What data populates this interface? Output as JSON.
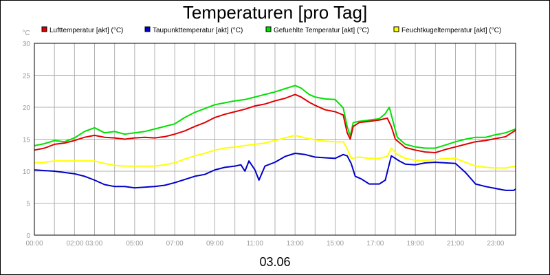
{
  "chart_data": {
    "type": "line",
    "title": "Temperaturen [pro Tag]",
    "unit_label": "°C",
    "xlabel": "03.06",
    "ylim": [
      0,
      30
    ],
    "y_ticks": [
      0,
      5,
      10,
      15,
      20,
      25,
      30
    ],
    "xlim_hours": [
      0,
      24
    ],
    "x_ticks": [
      {
        "hour": 0,
        "label": "00:00"
      },
      {
        "hour": 2.5,
        "label": "02:00 03:00"
      },
      {
        "hour": 5,
        "label": "05:00"
      },
      {
        "hour": 7,
        "label": "07:00"
      },
      {
        "hour": 9,
        "label": "09:00"
      },
      {
        "hour": 11,
        "label": "11:00"
      },
      {
        "hour": 13,
        "label": "13:00"
      },
      {
        "hour": 15,
        "label": "15:00"
      },
      {
        "hour": 17,
        "label": "17:00"
      },
      {
        "hour": 19,
        "label": "19:00"
      },
      {
        "hour": 21,
        "label": "21:00"
      },
      {
        "hour": 23,
        "label": "23:00"
      }
    ],
    "grid": true,
    "legend_position": "top",
    "series": [
      {
        "name": "Lufttemperatur [akt] (°C)",
        "color": "#e00000",
        "points": [
          [
            0,
            13.3
          ],
          [
            0.5,
            13.6
          ],
          [
            1,
            14.2
          ],
          [
            1.5,
            14.4
          ],
          [
            2,
            14.8
          ],
          [
            2.5,
            15.3
          ],
          [
            3,
            15.6
          ],
          [
            3.5,
            15.3
          ],
          [
            4,
            15.2
          ],
          [
            4.5,
            15.0
          ],
          [
            5,
            15.2
          ],
          [
            5.5,
            15.3
          ],
          [
            6,
            15.2
          ],
          [
            6.5,
            15.4
          ],
          [
            7,
            15.8
          ],
          [
            7.5,
            16.3
          ],
          [
            8,
            17.0
          ],
          [
            8.5,
            17.6
          ],
          [
            9,
            18.4
          ],
          [
            9.5,
            18.9
          ],
          [
            10,
            19.3
          ],
          [
            10.5,
            19.7
          ],
          [
            11,
            20.2
          ],
          [
            11.5,
            20.5
          ],
          [
            12,
            21.0
          ],
          [
            12.5,
            21.4
          ],
          [
            13,
            22.0
          ],
          [
            13.3,
            21.6
          ],
          [
            13.7,
            20.8
          ],
          [
            14,
            20.3
          ],
          [
            14.5,
            19.6
          ],
          [
            15,
            19.3
          ],
          [
            15.4,
            18.8
          ],
          [
            15.6,
            16.0
          ],
          [
            15.75,
            15.0
          ],
          [
            15.9,
            17.0
          ],
          [
            16.2,
            17.6
          ],
          [
            16.7,
            17.8
          ],
          [
            17.2,
            18.0
          ],
          [
            17.6,
            18.3
          ],
          [
            17.8,
            17.0
          ],
          [
            18,
            15.0
          ],
          [
            18.5,
            13.7
          ],
          [
            19,
            13.3
          ],
          [
            19.5,
            13.0
          ],
          [
            20,
            12.9
          ],
          [
            20.5,
            13.4
          ],
          [
            21,
            13.8
          ],
          [
            21.5,
            14.2
          ],
          [
            22,
            14.6
          ],
          [
            22.5,
            14.8
          ],
          [
            23,
            15.1
          ],
          [
            23.5,
            15.4
          ],
          [
            24,
            16.4
          ]
        ]
      },
      {
        "name": "Taupunkttemperatur [akt] (°C)",
        "color": "#0000c8",
        "points": [
          [
            0,
            10.2
          ],
          [
            0.5,
            10.1
          ],
          [
            1,
            10.0
          ],
          [
            1.5,
            9.8
          ],
          [
            2,
            9.6
          ],
          [
            2.5,
            9.2
          ],
          [
            3,
            8.6
          ],
          [
            3.5,
            7.9
          ],
          [
            4,
            7.6
          ],
          [
            4.5,
            7.6
          ],
          [
            5,
            7.4
          ],
          [
            5.5,
            7.5
          ],
          [
            6,
            7.6
          ],
          [
            6.5,
            7.8
          ],
          [
            7,
            8.2
          ],
          [
            7.5,
            8.7
          ],
          [
            8,
            9.2
          ],
          [
            8.5,
            9.5
          ],
          [
            9,
            10.2
          ],
          [
            9.5,
            10.6
          ],
          [
            10,
            10.8
          ],
          [
            10.3,
            11.0
          ],
          [
            10.5,
            10.0
          ],
          [
            10.7,
            11.6
          ],
          [
            11,
            10.2
          ],
          [
            11.2,
            8.6
          ],
          [
            11.5,
            10.8
          ],
          [
            12,
            11.4
          ],
          [
            12.5,
            12.3
          ],
          [
            13,
            12.8
          ],
          [
            13.5,
            12.6
          ],
          [
            14,
            12.2
          ],
          [
            14.5,
            12.1
          ],
          [
            15,
            12.0
          ],
          [
            15.4,
            12.6
          ],
          [
            15.6,
            12.4
          ],
          [
            15.8,
            11.2
          ],
          [
            16,
            9.2
          ],
          [
            16.3,
            8.8
          ],
          [
            16.7,
            8.0
          ],
          [
            17.2,
            8.0
          ],
          [
            17.5,
            8.6
          ],
          [
            17.8,
            12.4
          ],
          [
            18.2,
            11.6
          ],
          [
            18.5,
            11.1
          ],
          [
            19,
            11.0
          ],
          [
            19.5,
            11.3
          ],
          [
            20,
            11.4
          ],
          [
            20.5,
            11.3
          ],
          [
            21,
            11.2
          ],
          [
            21.5,
            9.8
          ],
          [
            22,
            8.0
          ],
          [
            22.5,
            7.6
          ],
          [
            23,
            7.3
          ],
          [
            23.5,
            7.0
          ],
          [
            23.9,
            7.0
          ],
          [
            24,
            7.2
          ]
        ]
      },
      {
        "name": "Gefuehlte Temperatur [akt] (°C)",
        "color": "#00e000",
        "points": [
          [
            0,
            14.0
          ],
          [
            0.5,
            14.3
          ],
          [
            1,
            14.8
          ],
          [
            1.5,
            14.6
          ],
          [
            2,
            15.2
          ],
          [
            2.5,
            16.2
          ],
          [
            3,
            16.8
          ],
          [
            3.5,
            16.0
          ],
          [
            4,
            16.2
          ],
          [
            4.5,
            15.8
          ],
          [
            5,
            16.0
          ],
          [
            5.5,
            16.2
          ],
          [
            6,
            16.6
          ],
          [
            6.5,
            17.0
          ],
          [
            7,
            17.4
          ],
          [
            7.5,
            18.4
          ],
          [
            8,
            19.2
          ],
          [
            8.5,
            19.8
          ],
          [
            9,
            20.4
          ],
          [
            9.5,
            20.7
          ],
          [
            10,
            21.0
          ],
          [
            10.5,
            21.2
          ],
          [
            11,
            21.6
          ],
          [
            11.5,
            22.0
          ],
          [
            12,
            22.4
          ],
          [
            12.5,
            22.9
          ],
          [
            13,
            23.4
          ],
          [
            13.3,
            23.0
          ],
          [
            13.7,
            22.0
          ],
          [
            14,
            21.6
          ],
          [
            14.5,
            21.3
          ],
          [
            15,
            21.2
          ],
          [
            15.4,
            19.9
          ],
          [
            15.6,
            17.0
          ],
          [
            15.75,
            15.5
          ],
          [
            15.9,
            17.6
          ],
          [
            16.2,
            17.8
          ],
          [
            16.7,
            18.0
          ],
          [
            17.2,
            18.2
          ],
          [
            17.5,
            19.0
          ],
          [
            17.7,
            20.0
          ],
          [
            17.9,
            17.6
          ],
          [
            18.1,
            15.3
          ],
          [
            18.5,
            14.2
          ],
          [
            19,
            13.8
          ],
          [
            19.5,
            13.6
          ],
          [
            20,
            13.6
          ],
          [
            20.5,
            14.1
          ],
          [
            21,
            14.6
          ],
          [
            21.5,
            15.0
          ],
          [
            22,
            15.3
          ],
          [
            22.5,
            15.3
          ],
          [
            23,
            15.7
          ],
          [
            23.5,
            16.0
          ],
          [
            24,
            16.6
          ]
        ]
      },
      {
        "name": "Feuchtkugeltemperatur [akt] (°C)",
        "color": "#ffff00",
        "points": [
          [
            0,
            11.3
          ],
          [
            0.5,
            11.4
          ],
          [
            1,
            11.6
          ],
          [
            1.5,
            11.6
          ],
          [
            2,
            11.6
          ],
          [
            2.5,
            11.6
          ],
          [
            3,
            11.6
          ],
          [
            3.5,
            11.2
          ],
          [
            4,
            10.9
          ],
          [
            4.5,
            10.8
          ],
          [
            5,
            10.8
          ],
          [
            5.5,
            10.8
          ],
          [
            6,
            10.8
          ],
          [
            6.5,
            11.0
          ],
          [
            7,
            11.3
          ],
          [
            7.5,
            11.9
          ],
          [
            8,
            12.4
          ],
          [
            8.5,
            12.8
          ],
          [
            9,
            13.3
          ],
          [
            9.5,
            13.6
          ],
          [
            10,
            13.8
          ],
          [
            10.5,
            14.0
          ],
          [
            11,
            14.2
          ],
          [
            11.5,
            14.4
          ],
          [
            12,
            14.8
          ],
          [
            12.5,
            15.2
          ],
          [
            13,
            15.6
          ],
          [
            13.5,
            15.2
          ],
          [
            14,
            14.9
          ],
          [
            14.5,
            14.7
          ],
          [
            15,
            14.6
          ],
          [
            15.4,
            14.6
          ],
          [
            15.6,
            13.5
          ],
          [
            15.8,
            12.0
          ],
          [
            16.2,
            12.2
          ],
          [
            16.7,
            12.0
          ],
          [
            17.2,
            12.0
          ],
          [
            17.6,
            12.3
          ],
          [
            17.8,
            13.6
          ],
          [
            18.1,
            12.6
          ],
          [
            18.5,
            12.0
          ],
          [
            19,
            11.7
          ],
          [
            19.5,
            11.7
          ],
          [
            20,
            11.8
          ],
          [
            20.5,
            12.0
          ],
          [
            21,
            12.0
          ],
          [
            21.5,
            11.4
          ],
          [
            22,
            10.8
          ],
          [
            22.5,
            10.6
          ],
          [
            23,
            10.5
          ],
          [
            23.5,
            10.5
          ],
          [
            24,
            10.8
          ]
        ]
      }
    ]
  }
}
